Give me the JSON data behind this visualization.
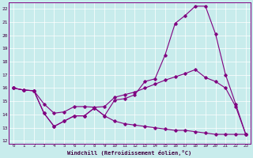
{
  "xlabel": "Windchill (Refroidissement éolien,°C)",
  "bg_color": "#c8ecec",
  "line_color": "#800080",
  "xlim": [
    -0.5,
    23.5
  ],
  "ylim": [
    11.8,
    22.5
  ],
  "yticks": [
    12,
    13,
    14,
    15,
    16,
    17,
    18,
    19,
    20,
    21,
    22
  ],
  "xticks": [
    0,
    1,
    2,
    3,
    4,
    5,
    6,
    7,
    8,
    9,
    10,
    11,
    12,
    13,
    14,
    15,
    16,
    17,
    18,
    19,
    20,
    21,
    22,
    23
  ],
  "line1_x": [
    0,
    1,
    2,
    3,
    4,
    5,
    6,
    7,
    8,
    9,
    10,
    11,
    12,
    13,
    14,
    15,
    16,
    17,
    18,
    19,
    20,
    21,
    22,
    23
  ],
  "line1_y": [
    16.0,
    15.85,
    15.8,
    14.8,
    14.1,
    14.2,
    14.6,
    14.6,
    14.55,
    14.6,
    15.3,
    15.5,
    15.7,
    16.0,
    16.3,
    16.6,
    16.85,
    17.1,
    17.4,
    16.8,
    16.5,
    16.0,
    14.6,
    12.5
  ],
  "line2_x": [
    0,
    1,
    2,
    3,
    4,
    5,
    6,
    7,
    8,
    9,
    10,
    11,
    12,
    13,
    14,
    15,
    16,
    17,
    18,
    19,
    20,
    21,
    22,
    23
  ],
  "line2_y": [
    16.0,
    15.85,
    15.8,
    14.1,
    13.1,
    13.5,
    13.9,
    13.9,
    14.5,
    13.9,
    15.1,
    15.2,
    15.5,
    16.5,
    16.7,
    18.5,
    20.9,
    21.5,
    22.2,
    22.2,
    20.1,
    17.0,
    14.8,
    12.5
  ],
  "line3_x": [
    0,
    1,
    2,
    3,
    4,
    5,
    6,
    7,
    8,
    9,
    10,
    11,
    12,
    13,
    14,
    15,
    16,
    17,
    18,
    19,
    20,
    21,
    22,
    23
  ],
  "line3_y": [
    16.0,
    15.85,
    15.8,
    14.1,
    13.1,
    13.5,
    13.9,
    13.9,
    14.5,
    13.9,
    13.5,
    13.3,
    13.2,
    13.1,
    13.0,
    12.9,
    12.8,
    12.8,
    12.7,
    12.6,
    12.5,
    12.5,
    12.5,
    12.5
  ]
}
